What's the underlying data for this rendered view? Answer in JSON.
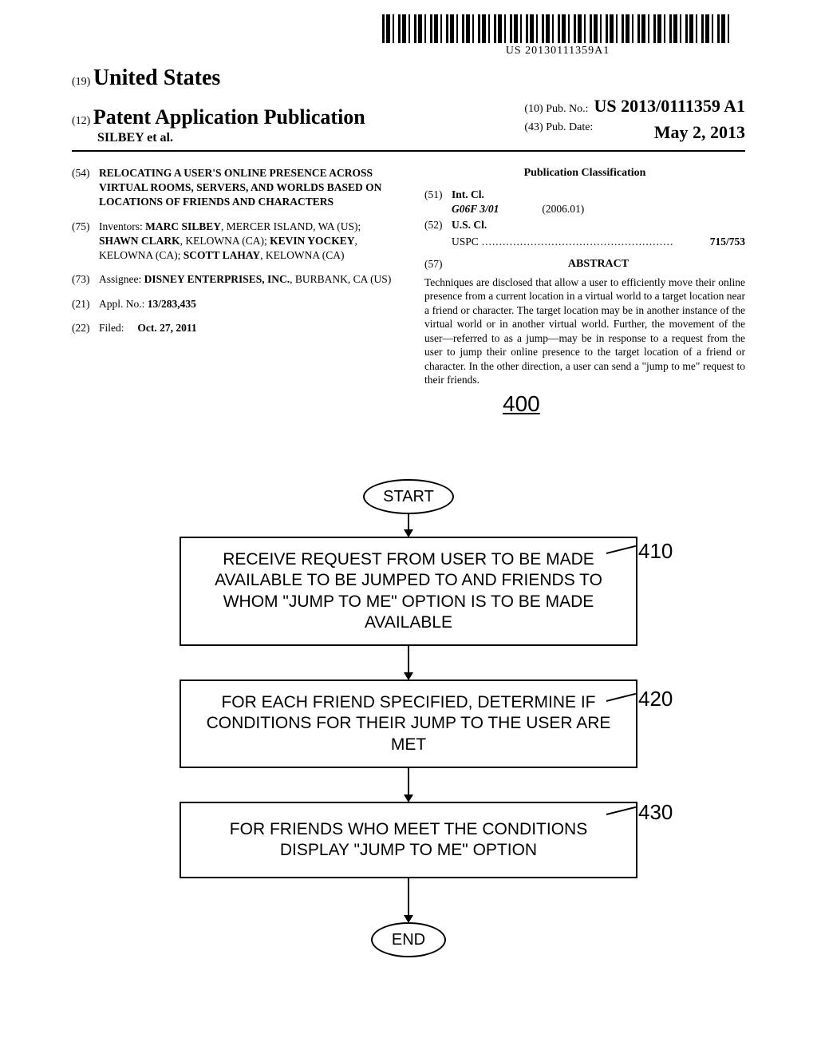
{
  "barcode_text": "US 20130111359A1",
  "header": {
    "country_num": "(19)",
    "country": "United States",
    "doc_type_num": "(12)",
    "doc_type": "Patent Application Publication",
    "authors": "SILBEY et al.",
    "pub_no_num": "(10)",
    "pub_no_label": "Pub. No.:",
    "pub_no": "US 2013/0111359 A1",
    "pub_date_num": "(43)",
    "pub_date_label": "Pub. Date:",
    "pub_date": "May 2, 2013"
  },
  "left_fields": {
    "title_num": "(54)",
    "title": "RELOCATING A USER'S ONLINE PRESENCE ACROSS VIRTUAL ROOMS, SERVERS, AND WORLDS BASED ON LOCATIONS OF FRIENDS AND CHARACTERS",
    "inventors_num": "(75)",
    "inventors_label": "Inventors:",
    "inventors_html": "MARC SILBEY|, MERCER ISLAND, WA (US); |SHAWN CLARK|, KELOWNA (CA); |KEVIN YOCKEY|, KELOWNA (CA); |SCOTT LAHAY|, KELOWNA (CA)",
    "assignee_num": "(73)",
    "assignee_label": "Assignee:",
    "assignee_html": "DISNEY ENTERPRISES, INC.|, BURBANK, CA (US)",
    "appl_num": "(21)",
    "appl_label": "Appl. No.:",
    "appl_value": "13/283,435",
    "filed_num": "(22)",
    "filed_label": "Filed:",
    "filed_value": "Oct. 27, 2011"
  },
  "right_fields": {
    "pub_class": "Publication Classification",
    "intcl_num": "(51)",
    "intcl_label": "Int. Cl.",
    "intcl_code": "G06F 3/01",
    "intcl_date": "(2006.01)",
    "uscl_num": "(52)",
    "uscl_label": "U.S. Cl.",
    "uscl_line": "USPC",
    "uscl_value": "715/753",
    "abstract_num": "(57)",
    "abstract_label": "ABSTRACT",
    "abstract_text": "Techniques are disclosed that allow a user to efficiently move their online presence from a current location in a virtual world to a target location near a friend or character. The target location may be in another instance of the virtual world or in another virtual world. Further, the movement of the user—referred to as a jump—may be in response to a request from the user to jump their online presence to the target location of a friend or character. In the other direction, a user can send a \"jump to me\" request to their friends."
  },
  "flowchart": {
    "fig_num": "400",
    "start": "START",
    "end": "END",
    "steps": [
      {
        "label": "RECEIVE REQUEST FROM USER TO BE MADE AVAILABLE TO BE JUMPED TO AND FRIENDS TO WHOM \"JUMP TO ME\" OPTION IS TO BE MADE AVAILABLE",
        "callout": "410"
      },
      {
        "label": "FOR EACH FRIEND SPECIFIED, DETERMINE IF CONDITIONS FOR THEIR JUMP TO THE USER ARE MET",
        "callout": "420"
      },
      {
        "label": "FOR FRIENDS WHO MEET THE CONDITIONS DISPLAY \"JUMP TO ME\" OPTION",
        "callout": "430"
      }
    ]
  }
}
